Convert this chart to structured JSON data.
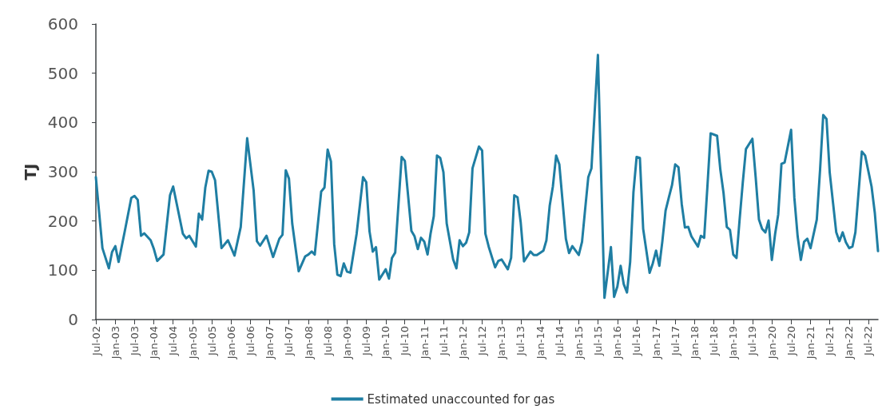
{
  "chart_data": {
    "type": "line",
    "ylabel": "TJ",
    "ylim": [
      0,
      600
    ],
    "yticks": [
      0,
      100,
      200,
      300,
      400,
      500,
      600
    ],
    "xlim": [
      "2002-07",
      "2022-10"
    ],
    "xticks": [
      {
        "value": "2002-07",
        "label": "Jul-02"
      },
      {
        "value": "2003-01",
        "label": "Jan-03"
      },
      {
        "value": "2003-07",
        "label": "Jul-03"
      },
      {
        "value": "2004-01",
        "label": "Jan-04"
      },
      {
        "value": "2004-07",
        "label": "Jul-04"
      },
      {
        "value": "2005-01",
        "label": "Jan-05"
      },
      {
        "value": "2005-07",
        "label": "Jul-05"
      },
      {
        "value": "2006-01",
        "label": "Jan-06"
      },
      {
        "value": "2006-07",
        "label": "Jul-06"
      },
      {
        "value": "2007-01",
        "label": "Jan-07"
      },
      {
        "value": "2007-07",
        "label": "Jul-07"
      },
      {
        "value": "2008-01",
        "label": "Jan-08"
      },
      {
        "value": "2008-07",
        "label": "Jul-08"
      },
      {
        "value": "2009-01",
        "label": "Jan-09"
      },
      {
        "value": "2009-07",
        "label": "Jul-09"
      },
      {
        "value": "2010-01",
        "label": "Jan-10"
      },
      {
        "value": "2010-07",
        "label": "Jul-10"
      },
      {
        "value": "2011-01",
        "label": "Jan-11"
      },
      {
        "value": "2011-07",
        "label": "Jul-11"
      },
      {
        "value": "2012-01",
        "label": "Jan-12"
      },
      {
        "value": "2012-07",
        "label": "Jul-12"
      },
      {
        "value": "2013-01",
        "label": "Jan-13"
      },
      {
        "value": "2013-07",
        "label": "Jul-13"
      },
      {
        "value": "2014-01",
        "label": "Jan-14"
      },
      {
        "value": "2014-07",
        "label": "Jul-14"
      },
      {
        "value": "2015-01",
        "label": "Jan-15"
      },
      {
        "value": "2015-07",
        "label": "Jul-15"
      },
      {
        "value": "2016-01",
        "label": "Jan-16"
      },
      {
        "value": "2016-07",
        "label": "Jul-16"
      },
      {
        "value": "2017-01",
        "label": "Jan-17"
      },
      {
        "value": "2017-07",
        "label": "Jul-17"
      },
      {
        "value": "2018-01",
        "label": "Jan-18"
      },
      {
        "value": "2018-07",
        "label": "Jul-18"
      },
      {
        "value": "2019-01",
        "label": "Jan-19"
      },
      {
        "value": "2019-07",
        "label": "Jul-19"
      },
      {
        "value": "2020-01",
        "label": "Jan-20"
      },
      {
        "value": "2020-07",
        "label": "Jul-20"
      },
      {
        "value": "2021-01",
        "label": "Jan-21"
      },
      {
        "value": "2021-07",
        "label": "Jul-21"
      },
      {
        "value": "2022-01",
        "label": "Jan-22"
      },
      {
        "value": "2022-07",
        "label": "Jul-22"
      }
    ],
    "grid": false,
    "legend": "bottom",
    "marker": "none",
    "line_style": "solid",
    "series": [
      {
        "name": "Estimated unaccounted for gas",
        "color": "#1f7ea3",
        "x": [
          "2002-07",
          "2002-09",
          "2002-11",
          "2002-12",
          "2003-01",
          "2003-02",
          "2003-04",
          "2003-06",
          "2003-07",
          "2003-08",
          "2003-09",
          "2003-10",
          "2003-12",
          "2004-01",
          "2004-02",
          "2004-04",
          "2004-06",
          "2004-07",
          "2004-10",
          "2004-11",
          "2004-12",
          "2005-02",
          "2005-03",
          "2005-04",
          "2005-05",
          "2005-06",
          "2005-07",
          "2005-08",
          "2005-10",
          "2005-12",
          "2006-02",
          "2006-04",
          "2006-06",
          "2006-08",
          "2006-09",
          "2006-10",
          "2006-12",
          "2007-02",
          "2007-04",
          "2007-05",
          "2007-06",
          "2007-07",
          "2007-08",
          "2007-10",
          "2007-12",
          "2008-01",
          "2008-02",
          "2008-03",
          "2008-05",
          "2008-06",
          "2008-07",
          "2008-08",
          "2008-09",
          "2008-10",
          "2008-11",
          "2008-12",
          "2009-01",
          "2009-02",
          "2009-04",
          "2009-06",
          "2009-07",
          "2009-08",
          "2009-09",
          "2009-10",
          "2009-11",
          "2010-01",
          "2010-02",
          "2010-03",
          "2010-04",
          "2010-06",
          "2010-07",
          "2010-09",
          "2010-10",
          "2010-11",
          "2010-12",
          "2011-01",
          "2011-02",
          "2011-03",
          "2011-04",
          "2011-05",
          "2011-06",
          "2011-07",
          "2011-08",
          "2011-10",
          "2011-11",
          "2011-12",
          "2012-01",
          "2012-02",
          "2012-03",
          "2012-04",
          "2012-06",
          "2012-07",
          "2012-08",
          "2012-09",
          "2012-11",
          "2012-12",
          "2013-01",
          "2013-03",
          "2013-04",
          "2013-05",
          "2013-06",
          "2013-07",
          "2013-08",
          "2013-10",
          "2013-11",
          "2013-12",
          "2014-02",
          "2014-03",
          "2014-04",
          "2014-05",
          "2014-06",
          "2014-07",
          "2014-09",
          "2014-10",
          "2014-11",
          "2015-01",
          "2015-02",
          "2015-03",
          "2015-04",
          "2015-05",
          "2015-07",
          "2015-09",
          "2015-11",
          "2015-12",
          "2016-01",
          "2016-02",
          "2016-03",
          "2016-04",
          "2016-05",
          "2016-06",
          "2016-07",
          "2016-08",
          "2016-09",
          "2016-11",
          "2016-12",
          "2017-01",
          "2017-02",
          "2017-03",
          "2017-04",
          "2017-05",
          "2017-06",
          "2017-07",
          "2017-08",
          "2017-09",
          "2017-10",
          "2017-11",
          "2017-12",
          "2018-02",
          "2018-03",
          "2018-04",
          "2018-05",
          "2018-06",
          "2018-08",
          "2018-09",
          "2018-10",
          "2018-11",
          "2018-12",
          "2019-01",
          "2019-02",
          "2019-03",
          "2019-04",
          "2019-05",
          "2019-07",
          "2019-08",
          "2019-09",
          "2019-10",
          "2019-11",
          "2019-12",
          "2020-01",
          "2020-02",
          "2020-03",
          "2020-04",
          "2020-05",
          "2020-07",
          "2020-08",
          "2020-09",
          "2020-10",
          "2020-11",
          "2020-12",
          "2021-01",
          "2021-03",
          "2021-04",
          "2021-05",
          "2021-06",
          "2021-07",
          "2021-09",
          "2021-10",
          "2021-11",
          "2021-12",
          "2022-01",
          "2022-02",
          "2022-03",
          "2022-05",
          "2022-06",
          "2022-08",
          "2022-09",
          "2022-10"
        ],
        "values": [
          289,
          145,
          104,
          137,
          149,
          117,
          180,
          247,
          251,
          243,
          170,
          175,
          161,
          143,
          119,
          132,
          252,
          270,
          174,
          165,
          170,
          148,
          215,
          203,
          268,
          302,
          300,
          283,
          145,
          161,
          130,
          188,
          368,
          262,
          159,
          150,
          170,
          127,
          164,
          172,
          303,
          286,
          195,
          98,
          128,
          132,
          138,
          132,
          260,
          268,
          345,
          321,
          153,
          91,
          88,
          114,
          97,
          95,
          174,
          289,
          279,
          179,
          138,
          147,
          81,
          102,
          83,
          125,
          136,
          330,
          322,
          180,
          169,
          143,
          166,
          158,
          132,
          174,
          210,
          333,
          328,
          299,
          195,
          122,
          104,
          161,
          149,
          156,
          177,
          307,
          351,
          343,
          174,
          148,
          106,
          119,
          122,
          102,
          125,
          252,
          248,
          197,
          118,
          138,
          131,
          131,
          140,
          161,
          231,
          270,
          333,
          315,
          164,
          135,
          149,
          131,
          158,
          221,
          289,
          307,
          537,
          44,
          147,
          46,
          67,
          109,
          72,
          55,
          117,
          258,
          330,
          328,
          184,
          95,
          114,
          140,
          109,
          158,
          221,
          247,
          273,
          315,
          309,
          234,
          187,
          188,
          169,
          148,
          170,
          166,
          268,
          378,
          373,
          304,
          257,
          188,
          182,
          132,
          125,
          200,
          278,
          346,
          367,
          289,
          203,
          184,
          177,
          201,
          121,
          174,
          213,
          316,
          319,
          385,
          247,
          169,
          121,
          158,
          164,
          145,
          203,
          304,
          415,
          407,
          299,
          177,
          159,
          177,
          157,
          145,
          148,
          177,
          341,
          333,
          270,
          216,
          139
        ]
      }
    ]
  }
}
